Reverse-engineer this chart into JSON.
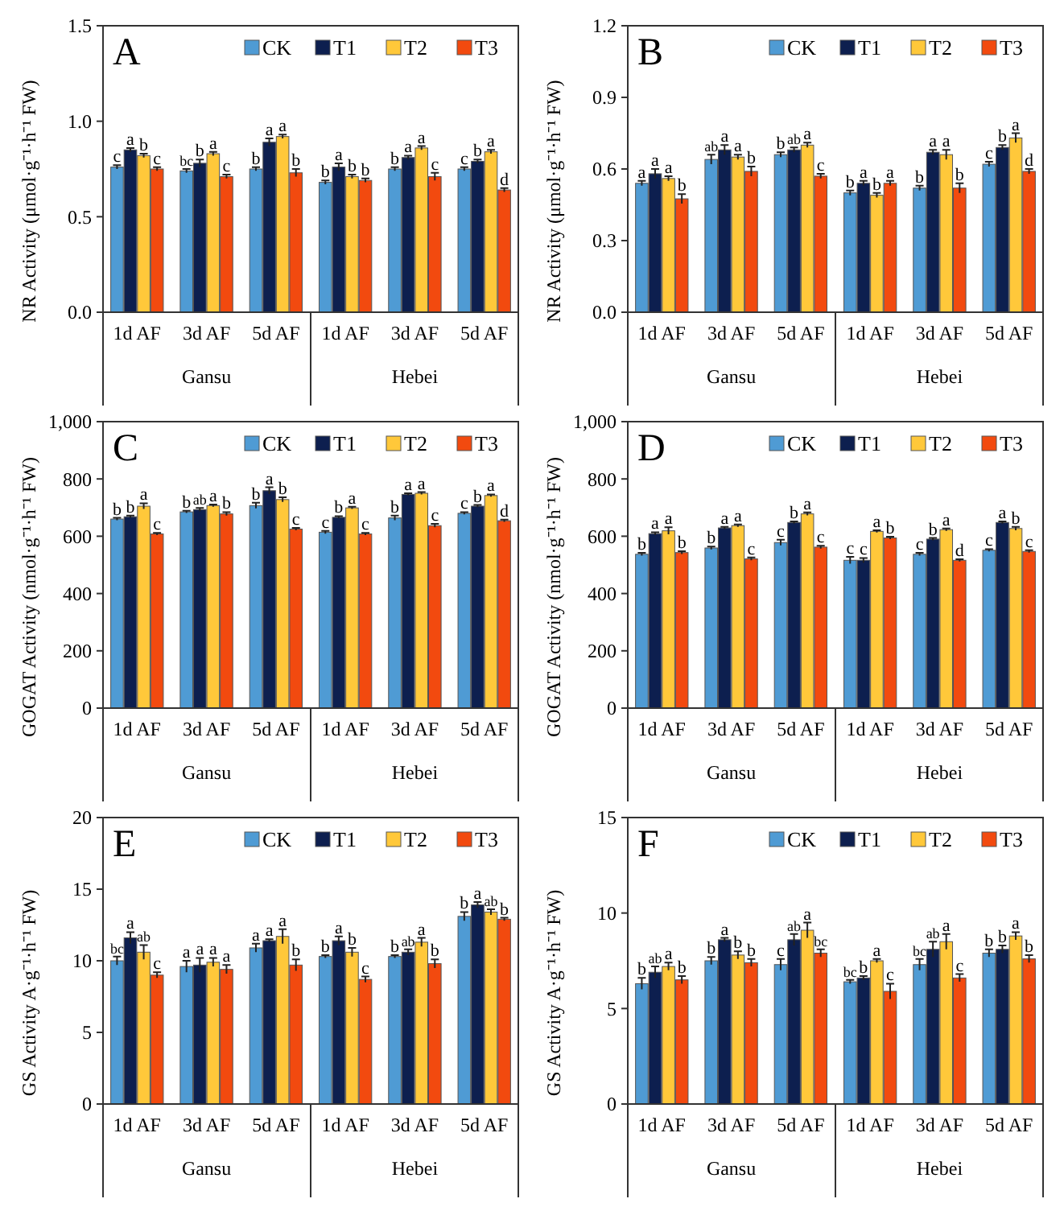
{
  "chart_data": [
    {
      "type": "bar",
      "title": "A",
      "ylabel": "NR Activity (μmol·g⁻¹·h⁻¹ FW)",
      "categories": [
        "1d AF",
        "3d AF",
        "5d AF",
        "1d AF",
        "3d AF",
        "5d AF"
      ],
      "annotations": [
        "Gansu",
        "Hebei"
      ],
      "ylim": [
        0,
        1.5
      ],
      "yticks": [
        {
          "value": 0,
          "label": "0.0"
        },
        0.5,
        {
          "value": 1,
          "label": "1.0"
        },
        1.5
      ],
      "legend": "top right",
      "grid": false,
      "series": [
        {
          "name": "CK",
          "color": "#4f9bd4",
          "values": [
            0.76,
            0.74,
            0.75,
            0.68,
            0.75,
            0.75
          ],
          "errors": [
            0.01,
            0.01,
            0.01,
            0.01,
            0.01,
            0.01
          ],
          "value_labels": [
            "c",
            "bc",
            "b",
            "b",
            "b",
            "c"
          ]
        },
        {
          "name": "T1",
          "color": "#0d1f4f",
          "values": [
            0.85,
            0.78,
            0.89,
            0.76,
            0.81,
            0.79
          ],
          "errors": [
            0.01,
            0.02,
            0.02,
            0.02,
            0.01,
            0.01
          ],
          "value_labels": [
            "a",
            "b",
            "a",
            "a",
            "a",
            "b"
          ]
        },
        {
          "name": "T2",
          "color": "#ffc83a",
          "values": [
            0.82,
            0.83,
            0.92,
            0.71,
            0.86,
            0.84
          ],
          "errors": [
            0.01,
            0.01,
            0.01,
            0.01,
            0.01,
            0.01
          ],
          "value_labels": [
            "b",
            "a",
            "a",
            "b",
            "a",
            "a"
          ]
        },
        {
          "name": "T3",
          "color": "#f24a0f",
          "values": [
            0.75,
            0.71,
            0.73,
            0.69,
            0.71,
            0.64
          ],
          "errors": [
            0.01,
            0.01,
            0.02,
            0.01,
            0.02,
            0.01
          ],
          "value_labels": [
            "c",
            "c",
            "b",
            "b",
            "c",
            "d"
          ]
        }
      ]
    },
    {
      "type": "bar",
      "title": "B",
      "ylabel": "NR Activity (μmol·g⁻¹·h⁻¹ FW)",
      "categories": [
        "1d AF",
        "3d AF",
        "5d AF",
        "1d AF",
        "3d AF",
        "5d AF"
      ],
      "annotations": [
        "Gansu",
        "Hebei"
      ],
      "ylim": [
        0,
        1.2
      ],
      "yticks": [
        {
          "value": 0,
          "label": "0.0"
        },
        0.3,
        0.6,
        0.9,
        1.2
      ],
      "legend": "top right",
      "grid": false,
      "series": [
        {
          "name": "CK",
          "color": "#4f9bd4",
          "values": [
            0.54,
            0.64,
            0.66,
            0.5,
            0.52,
            0.62
          ],
          "errors": [
            0.01,
            0.02,
            0.01,
            0.01,
            0.01,
            0.01
          ],
          "value_labels": [
            "a",
            "ab",
            "b",
            "b",
            "b",
            "c"
          ]
        },
        {
          "name": "T1",
          "color": "#0d1f4f",
          "values": [
            0.58,
            0.68,
            0.68,
            0.54,
            0.67,
            0.69
          ],
          "errors": [
            0.02,
            0.02,
            0.01,
            0.01,
            0.01,
            0.01
          ],
          "value_labels": [
            "a",
            "a",
            "ab",
            "a",
            "a",
            "b"
          ]
        },
        {
          "name": "T2",
          "color": "#ffc83a",
          "values": [
            0.56,
            0.65,
            0.7,
            0.49,
            0.66,
            0.73
          ],
          "errors": [
            0.01,
            0.01,
            0.01,
            0.01,
            0.02,
            0.02
          ],
          "value_labels": [
            "a",
            "a",
            "a",
            "b",
            "a",
            "a"
          ]
        },
        {
          "name": "T3",
          "color": "#f24a0f",
          "values": [
            0.475,
            0.59,
            0.57,
            0.54,
            0.52,
            0.59
          ],
          "errors": [
            0.02,
            0.02,
            0.01,
            0.01,
            0.02,
            0.01
          ],
          "value_labels": [
            "b",
            "b",
            "c",
            "a",
            "b",
            "d"
          ]
        }
      ]
    },
    {
      "type": "bar",
      "title": "C",
      "ylabel": "GOGAT  Activity (nmol·g⁻¹·h⁻¹ FW)",
      "categories": [
        "1d AF",
        "3d AF",
        "5d AF",
        "1d AF",
        "3d AF",
        "5d AF"
      ],
      "annotations": [
        "Gansu",
        "Hebei"
      ],
      "ylim": [
        0,
        1000
      ],
      "yticks": [
        0,
        200,
        400,
        600,
        800,
        {
          "value": 1000,
          "label": "1,000"
        }
      ],
      "legend": "top right",
      "grid": false,
      "series": [
        {
          "name": "CK",
          "color": "#4f9bd4",
          "values": [
            660,
            685,
            707,
            614,
            664,
            680
          ],
          "errors": [
            4,
            4,
            10,
            5,
            8,
            4
          ],
          "value_labels": [
            "b",
            "b",
            "b",
            "c",
            "b",
            "c"
          ]
        },
        {
          "name": "T1",
          "color": "#0d1f4f",
          "values": [
            668,
            693,
            759,
            666,
            746,
            705
          ],
          "errors": [
            4,
            6,
            12,
            4,
            4,
            4
          ],
          "value_labels": [
            "b",
            "ab",
            "a",
            "b",
            "a",
            "b"
          ]
        },
        {
          "name": "T2",
          "color": "#ffc83a",
          "values": [
            705,
            707,
            728,
            699,
            750,
            742
          ],
          "errors": [
            10,
            4,
            8,
            4,
            4,
            4
          ],
          "value_labels": [
            "a",
            "a",
            "b",
            "a",
            "a",
            "a"
          ]
        },
        {
          "name": "T3",
          "color": "#f24a0f",
          "values": [
            608,
            678,
            625,
            608,
            637,
            654
          ],
          "errors": [
            4,
            6,
            4,
            4,
            6,
            4
          ],
          "value_labels": [
            "c",
            "b",
            "c",
            "c",
            "c",
            "d"
          ]
        }
      ]
    },
    {
      "type": "bar",
      "title": "D",
      "ylabel": "GOGAT  Activity (nmol·g⁻¹·h⁻¹ FW)",
      "categories": [
        "1d AF",
        "3d AF",
        "5d AF",
        "1d AF",
        "3d AF",
        "5d AF"
      ],
      "annotations": [
        "Gansu",
        "Hebei"
      ],
      "ylim": [
        0,
        1000
      ],
      "yticks": [
        0,
        200,
        400,
        600,
        800,
        {
          "value": 1000,
          "label": "1,000"
        }
      ],
      "legend": "top right",
      "grid": false,
      "series": [
        {
          "name": "CK",
          "color": "#4f9bd4",
          "values": [
            537,
            559,
            578,
            516,
            537,
            551
          ],
          "errors": [
            5,
            5,
            10,
            12,
            5,
            4
          ],
          "value_labels": [
            "b",
            "b",
            "c",
            "c",
            "c",
            "c"
          ]
        },
        {
          "name": "T1",
          "color": "#0d1f4f",
          "values": [
            609,
            629,
            648,
            516,
            590,
            648
          ],
          "errors": [
            5,
            4,
            4,
            8,
            4,
            4
          ],
          "value_labels": [
            "a",
            "a",
            "b",
            "c",
            "b",
            "a"
          ]
        },
        {
          "name": "T2",
          "color": "#ffc83a",
          "values": [
            619,
            637,
            678,
            617,
            623,
            627
          ],
          "errors": [
            12,
            4,
            5,
            4,
            4,
            6
          ],
          "value_labels": [
            "a",
            "a",
            "a",
            "a",
            "a",
            "b"
          ]
        },
        {
          "name": "T3",
          "color": "#f24a0f",
          "values": [
            543,
            521,
            562,
            594,
            516,
            547
          ],
          "errors": [
            5,
            5,
            5,
            4,
            4,
            4
          ],
          "value_labels": [
            "b",
            "c",
            "c",
            "b",
            "d",
            "c"
          ]
        }
      ]
    },
    {
      "type": "bar",
      "title": "E",
      "ylabel": "GS  Activity  A·g⁻¹·h⁻¹ FW)",
      "categories": [
        "1d AF",
        "3d AF",
        "5d AF",
        "1d AF",
        "3d AF",
        "5d AF"
      ],
      "annotations": [
        "Gansu",
        "Hebei"
      ],
      "ylim": [
        0,
        20
      ],
      "yticks": [
        0,
        5,
        10,
        15,
        20
      ],
      "legend": "top right",
      "grid": false,
      "series": [
        {
          "name": "CK",
          "color": "#4f9bd4",
          "values": [
            10,
            9.6,
            10.9,
            10.3,
            10.3,
            13.1
          ],
          "errors": [
            0.3,
            0.4,
            0.3,
            0.1,
            0.1,
            0.3
          ],
          "value_labels": [
            "bc",
            "a",
            "a",
            "b",
            "b",
            "b"
          ]
        },
        {
          "name": "T1",
          "color": "#0d1f4f",
          "values": [
            11.6,
            9.7,
            11.4,
            11.4,
            10.6,
            13.9
          ],
          "errors": [
            0.4,
            0.5,
            0.1,
            0.3,
            0.2,
            0.2
          ],
          "value_labels": [
            "a",
            "a",
            "a",
            "a",
            "ab",
            "a"
          ]
        },
        {
          "name": "T2",
          "color": "#ffc83a",
          "values": [
            10.6,
            9.9,
            11.7,
            10.6,
            11.3,
            13.4
          ],
          "errors": [
            0.5,
            0.3,
            0.5,
            0.3,
            0.3,
            0.2
          ],
          "value_labels": [
            "ab",
            "a",
            "a",
            "b",
            "a",
            "ab"
          ]
        },
        {
          "name": "T3",
          "color": "#f24a0f",
          "values": [
            9,
            9.4,
            9.7,
            8.7,
            9.8,
            12.9
          ],
          "errors": [
            0.2,
            0.3,
            0.4,
            0.2,
            0.3,
            0.1
          ],
          "value_labels": [
            "c",
            "a",
            "b",
            "c",
            "b",
            "b"
          ]
        }
      ]
    },
    {
      "type": "bar",
      "title": "F",
      "ylabel": "GS  Activity  A·g⁻¹·h⁻¹ FW)",
      "categories": [
        "1d AF",
        "3d AF",
        "5d AF",
        "1d AF",
        "3d AF",
        "5d AF"
      ],
      "annotations": [
        "Gansu",
        "Hebei"
      ],
      "ylim": [
        0,
        15
      ],
      "yticks": [
        0,
        5,
        10,
        15
      ],
      "legend": "top right",
      "grid": false,
      "series": [
        {
          "name": "CK",
          "color": "#4f9bd4",
          "values": [
            6.3,
            7.5,
            7.3,
            6.4,
            7.3,
            7.9
          ],
          "errors": [
            0.3,
            0.2,
            0.3,
            0.1,
            0.3,
            0.2
          ],
          "value_labels": [
            "b",
            "b",
            "c",
            "bc",
            "bc",
            "b"
          ]
        },
        {
          "name": "T1",
          "color": "#0d1f4f",
          "values": [
            6.9,
            8.6,
            8.6,
            6.6,
            8.1,
            8.1
          ],
          "errors": [
            0.3,
            0.1,
            0.3,
            0.1,
            0.4,
            0.2
          ],
          "value_labels": [
            "ab",
            "a",
            "ab",
            "b",
            "ab",
            "b"
          ]
        },
        {
          "name": "T2",
          "color": "#ffc83a",
          "values": [
            7.2,
            7.8,
            9.1,
            7.5,
            8.5,
            8.8
          ],
          "errors": [
            0.2,
            0.2,
            0.4,
            0.1,
            0.4,
            0.2
          ],
          "value_labels": [
            "a",
            "b",
            "a",
            "a",
            "a",
            "a"
          ]
        },
        {
          "name": "T3",
          "color": "#f24a0f",
          "values": [
            6.5,
            7.4,
            7.9,
            5.9,
            6.6,
            7.6
          ],
          "errors": [
            0.2,
            0.2,
            0.2,
            0.4,
            0.2,
            0.2
          ],
          "value_labels": [
            "b",
            "b",
            "bc",
            "c",
            "c",
            "b"
          ]
        }
      ]
    }
  ]
}
